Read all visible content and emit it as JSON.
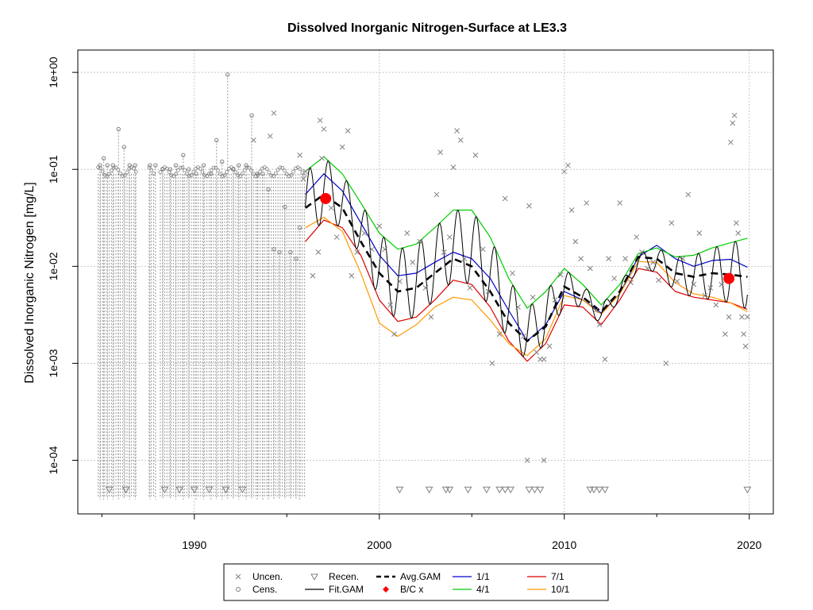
{
  "chart_data": {
    "type": "line",
    "title": "Dissolved Inorganic Nitrogen-Surface at LE3.3",
    "ylabel": "Dissolved Inorganic Nitrogen [mg/L]",
    "xlabel": "",
    "x_ticks": [
      1990,
      2000,
      2010,
      2020
    ],
    "x_tick_labels": [
      "1990",
      "2000",
      "2010",
      "2020"
    ],
    "y_scale": "log",
    "y_ticks": [
      0.0001,
      0.001,
      0.01,
      0.1,
      1
    ],
    "y_tick_labels": [
      "1e-04",
      "1e-03",
      "1e-02",
      "1e-01",
      "1e+00"
    ],
    "xlim": [
      1983.7,
      2021.3
    ],
    "ylim": [
      2.8e-05,
      1.7
    ],
    "grid": true,
    "legend_position": "bottom",
    "legend": [
      {
        "label": "Uncen.",
        "symbol": "x",
        "color": "#808080"
      },
      {
        "label": "Cens.",
        "symbol": "circle",
        "color": "#808080"
      },
      {
        "label": "Recen.",
        "symbol": "triangle-down",
        "color": "#808080"
      },
      {
        "label": "Fit.GAM",
        "symbol": "line",
        "color": "#000000"
      },
      {
        "label": "Avg.GAM",
        "symbol": "dashed-line",
        "color": "#000000"
      },
      {
        "label": "B/C x",
        "symbol": "diamond",
        "color": "#ff0000"
      },
      {
        "label": "1/1",
        "symbol": "line",
        "color": "#0000cc"
      },
      {
        "label": "4/1",
        "symbol": "line",
        "color": "#00cc00"
      },
      {
        "label": "7/1",
        "symbol": "line",
        "color": "#dd0000"
      },
      {
        "label": "10/1",
        "symbol": "line",
        "color": "#ff9900"
      }
    ],
    "colors": {
      "points": "#808080",
      "fit_gam": "#000000",
      "avg_gam": "#000000",
      "bc": "#ff0000",
      "s1": "#0000cc",
      "s4": "#00cc00",
      "s7": "#dd0000",
      "s10": "#ff9900"
    },
    "seasonal_curves": {
      "x": [
        1996.0,
        1997.0,
        1998.0,
        1999.0,
        2000.0,
        2001.0,
        2002.0,
        2003.0,
        2004.0,
        2005.0,
        2006.0,
        2007.0,
        2008.0,
        2009.0,
        2010.0,
        2011.0,
        2012.0,
        2013.0,
        2014.0,
        2015.0,
        2016.0,
        2017.0,
        2018.0,
        2019.0,
        2019.9
      ],
      "series": [
        {
          "key": "s1",
          "values": [
            0.055,
            0.09,
            0.06,
            0.028,
            0.013,
            0.008,
            0.0085,
            0.011,
            0.014,
            0.012,
            0.0075,
            0.0035,
            0.0017,
            0.0025,
            0.0055,
            0.0045,
            0.0033,
            0.0052,
            0.0125,
            0.0165,
            0.012,
            0.01,
            0.0115,
            0.0118,
            0.0098
          ]
        },
        {
          "key": "s4",
          "values": [
            0.095,
            0.135,
            0.09,
            0.045,
            0.022,
            0.015,
            0.017,
            0.025,
            0.038,
            0.038,
            0.02,
            0.0075,
            0.0037,
            0.0055,
            0.0095,
            0.0065,
            0.004,
            0.0065,
            0.0135,
            0.0155,
            0.0125,
            0.013,
            0.0155,
            0.0175,
            0.0195
          ]
        },
        {
          "key": "s7",
          "values": [
            0.018,
            0.03,
            0.025,
            0.013,
            0.0045,
            0.0027,
            0.003,
            0.0045,
            0.0072,
            0.0065,
            0.0038,
            0.0017,
            0.00105,
            0.0016,
            0.004,
            0.0038,
            0.0025,
            0.0045,
            0.0095,
            0.0087,
            0.0055,
            0.0048,
            0.0045,
            0.0042,
            0.0036
          ]
        },
        {
          "key": "s10",
          "values": [
            0.025,
            0.032,
            0.023,
            0.0085,
            0.0026,
            0.0019,
            0.0025,
            0.0038,
            0.0048,
            0.0045,
            0.0028,
            0.0016,
            0.0012,
            0.0018,
            0.005,
            0.0045,
            0.0032,
            0.0052,
            0.0112,
            0.011,
            0.0068,
            0.0052,
            0.0048,
            0.0042,
            0.0034
          ]
        }
      ]
    },
    "avg_gam": {
      "x": [
        1996.0,
        1997.0,
        1998.0,
        1999.0,
        2000.0,
        2001.0,
        2002.0,
        2003.0,
        2004.0,
        2005.0,
        2006.0,
        2007.0,
        2008.0,
        2009.0,
        2010.0,
        2011.0,
        2012.0,
        2013.0,
        2014.0,
        2015.0,
        2016.0,
        2017.0,
        2018.0,
        2019.0,
        2019.9
      ],
      "values": [
        0.04,
        0.055,
        0.04,
        0.018,
        0.0085,
        0.0055,
        0.006,
        0.0085,
        0.012,
        0.01,
        0.0055,
        0.0026,
        0.0017,
        0.0024,
        0.0062,
        0.0048,
        0.0034,
        0.0055,
        0.0125,
        0.012,
        0.0085,
        0.0078,
        0.0085,
        0.0082,
        0.0078
      ]
    },
    "bc_points": [
      {
        "x": 1997.1,
        "y": 0.05
      },
      {
        "x": 2018.9,
        "y": 0.0075
      }
    ],
    "uncensored_points": [
      {
        "x": 1995.9,
        "y": 0.08
      },
      {
        "x": 1996.0,
        "y": 0.095
      },
      {
        "x": 1996.4,
        "y": 0.008
      },
      {
        "x": 1996.7,
        "y": 0.014
      },
      {
        "x": 1996.8,
        "y": 0.32
      },
      {
        "x": 1996.9,
        "y": 0.13
      },
      {
        "x": 1997.0,
        "y": 0.26
      },
      {
        "x": 1997.4,
        "y": 0.04
      },
      {
        "x": 1997.7,
        "y": 0.02
      },
      {
        "x": 1998.0,
        "y": 0.17
      },
      {
        "x": 1998.3,
        "y": 0.25
      },
      {
        "x": 1998.5,
        "y": 0.008
      },
      {
        "x": 1998.8,
        "y": 0.014
      },
      {
        "x": 1999.2,
        "y": 0.022
      },
      {
        "x": 1999.6,
        "y": 0.015
      },
      {
        "x": 2000.0,
        "y": 0.026
      },
      {
        "x": 2000.3,
        "y": 0.015
      },
      {
        "x": 2000.6,
        "y": 0.004
      },
      {
        "x": 2000.8,
        "y": 0.002
      },
      {
        "x": 2001.1,
        "y": 0.007
      },
      {
        "x": 2001.5,
        "y": 0.022
      },
      {
        "x": 2001.8,
        "y": 0.011
      },
      {
        "x": 2002.2,
        "y": 0.018
      },
      {
        "x": 2002.5,
        "y": 0.006
      },
      {
        "x": 2002.8,
        "y": 0.003
      },
      {
        "x": 2003.1,
        "y": 0.055
      },
      {
        "x": 2003.3,
        "y": 0.15
      },
      {
        "x": 2003.5,
        "y": 0.014
      },
      {
        "x": 2003.8,
        "y": 0.02
      },
      {
        "x": 2004.0,
        "y": 0.105
      },
      {
        "x": 2004.2,
        "y": 0.25
      },
      {
        "x": 2004.4,
        "y": 0.2
      },
      {
        "x": 2004.6,
        "y": 0.012
      },
      {
        "x": 2004.9,
        "y": 0.006
      },
      {
        "x": 2005.2,
        "y": 0.14
      },
      {
        "x": 2005.6,
        "y": 0.015
      },
      {
        "x": 2005.9,
        "y": 0.0055
      },
      {
        "x": 2006.1,
        "y": 0.001
      },
      {
        "x": 2006.5,
        "y": 0.002
      },
      {
        "x": 2006.8,
        "y": 0.05
      },
      {
        "x": 2007.2,
        "y": 0.0085
      },
      {
        "x": 2007.5,
        "y": 0.0038
      },
      {
        "x": 2007.8,
        "y": 0.0019
      },
      {
        "x": 2008.1,
        "y": 0.042
      },
      {
        "x": 2008.3,
        "y": 0.0048
      },
      {
        "x": 2008.5,
        "y": 0.0013
      },
      {
        "x": 2008.7,
        "y": 0.0011
      },
      {
        "x": 2008.9,
        "y": 0.0011
      },
      {
        "x": 2009.2,
        "y": 0.0015
      },
      {
        "x": 2009.5,
        "y": 0.0045
      },
      {
        "x": 2009.8,
        "y": 0.0082
      },
      {
        "x": 2010.0,
        "y": 0.095
      },
      {
        "x": 2010.2,
        "y": 0.11
      },
      {
        "x": 2010.4,
        "y": 0.038
      },
      {
        "x": 2010.6,
        "y": 0.018
      },
      {
        "x": 2010.9,
        "y": 0.012
      },
      {
        "x": 2011.2,
        "y": 0.045
      },
      {
        "x": 2011.4,
        "y": 0.0095
      },
      {
        "x": 2011.7,
        "y": 0.0035
      },
      {
        "x": 2011.9,
        "y": 0.0025
      },
      {
        "x": 2012.2,
        "y": 0.0011
      },
      {
        "x": 2012.4,
        "y": 0.012
      },
      {
        "x": 2012.7,
        "y": 0.0075
      },
      {
        "x": 2013.0,
        "y": 0.045
      },
      {
        "x": 2013.3,
        "y": 0.012
      },
      {
        "x": 2013.6,
        "y": 0.0068
      },
      {
        "x": 2013.9,
        "y": 0.02
      },
      {
        "x": 2014.2,
        "y": 0.014
      },
      {
        "x": 2014.5,
        "y": 0.0095
      },
      {
        "x": 2014.8,
        "y": 0.011
      },
      {
        "x": 2015.1,
        "y": 0.0072
      },
      {
        "x": 2015.5,
        "y": 0.001
      },
      {
        "x": 2015.8,
        "y": 0.028
      },
      {
        "x": 2016.1,
        "y": 0.007
      },
      {
        "x": 2016.4,
        "y": 0.012
      },
      {
        "x": 2016.7,
        "y": 0.055
      },
      {
        "x": 2017.0,
        "y": 0.0065
      },
      {
        "x": 2017.3,
        "y": 0.022
      },
      {
        "x": 2017.6,
        "y": 0.005
      },
      {
        "x": 2017.9,
        "y": 0.006
      },
      {
        "x": 2018.2,
        "y": 0.004
      },
      {
        "x": 2018.5,
        "y": 0.0065
      },
      {
        "x": 2018.7,
        "y": 0.002
      },
      {
        "x": 2018.9,
        "y": 0.003
      },
      {
        "x": 2019.0,
        "y": 0.19
      },
      {
        "x": 2019.1,
        "y": 0.3
      },
      {
        "x": 2019.2,
        "y": 0.36
      },
      {
        "x": 2019.3,
        "y": 0.028
      },
      {
        "x": 2019.4,
        "y": 0.022
      },
      {
        "x": 2019.6,
        "y": 0.003
      },
      {
        "x": 2019.7,
        "y": 0.002
      },
      {
        "x": 2019.8,
        "y": 0.0015
      },
      {
        "x": 2019.9,
        "y": 0.003
      }
    ],
    "censored_points": [
      {
        "x": 1984.9,
        "y": 0.11
      },
      {
        "x": 1985.1,
        "y": 0.13
      },
      {
        "x": 1985.3,
        "y": 0.11
      },
      {
        "x": 1985.6,
        "y": 0.11
      },
      {
        "x": 1985.9,
        "y": 0.26
      },
      {
        "x": 1986.2,
        "y": 0.17
      },
      {
        "x": 1986.5,
        "y": 0.11
      },
      {
        "x": 1986.8,
        "y": 0.11
      },
      {
        "x": 1987.6,
        "y": 0.11
      },
      {
        "x": 1987.9,
        "y": 0.11
      },
      {
        "x": 1988.3,
        "y": 0.1
      },
      {
        "x": 1988.7,
        "y": 0.1
      },
      {
        "x": 1989.0,
        "y": 0.11
      },
      {
        "x": 1989.4,
        "y": 0.14
      },
      {
        "x": 1989.7,
        "y": 0.1
      },
      {
        "x": 1990.1,
        "y": 0.09
      },
      {
        "x": 1990.5,
        "y": 0.11
      },
      {
        "x": 1990.9,
        "y": 0.09
      },
      {
        "x": 1991.2,
        "y": 0.2
      },
      {
        "x": 1991.5,
        "y": 0.12
      },
      {
        "x": 1991.8,
        "y": 0.95
      },
      {
        "x": 1992.1,
        "y": 0.1
      },
      {
        "x": 1992.4,
        "y": 0.11
      },
      {
        "x": 1992.8,
        "y": 0.11
      },
      {
        "x": 1993.1,
        "y": 0.36
      },
      {
        "x": 1993.4,
        "y": 0.09
      },
      {
        "x": 1993.7,
        "y": 0.09
      },
      {
        "x": 1994.0,
        "y": 0.062
      },
      {
        "x": 1994.3,
        "y": 0.015
      },
      {
        "x": 1994.6,
        "y": 0.014
      },
      {
        "x": 1994.9,
        "y": 0.041
      },
      {
        "x": 1995.2,
        "y": 0.014
      },
      {
        "x": 1995.5,
        "y": 0.012
      },
      {
        "x": 1995.7,
        "y": 0.025
      }
    ],
    "recensored_points": [
      {
        "x": 1985.4,
        "y": 5e-05
      },
      {
        "x": 1986.3,
        "y": 5e-05
      },
      {
        "x": 1988.4,
        "y": 5e-05
      },
      {
        "x": 1989.2,
        "y": 5e-05
      },
      {
        "x": 1990.0,
        "y": 5e-05
      },
      {
        "x": 1990.8,
        "y": 5e-05
      },
      {
        "x": 1991.7,
        "y": 5e-05
      },
      {
        "x": 1992.6,
        "y": 5e-05
      },
      {
        "x": 2001.1,
        "y": 5e-05
      },
      {
        "x": 2002.7,
        "y": 5e-05
      },
      {
        "x": 2003.6,
        "y": 5e-05
      },
      {
        "x": 2003.8,
        "y": 5e-05
      },
      {
        "x": 2004.8,
        "y": 5e-05
      },
      {
        "x": 2005.8,
        "y": 5e-05
      },
      {
        "x": 2006.5,
        "y": 5e-05
      },
      {
        "x": 2006.8,
        "y": 5e-05
      },
      {
        "x": 2007.1,
        "y": 5e-05
      },
      {
        "x": 2008.1,
        "y": 5e-05
      },
      {
        "x": 2008.4,
        "y": 5e-05
      },
      {
        "x": 2008.7,
        "y": 5e-05
      },
      {
        "x": 2011.4,
        "y": 5e-05
      },
      {
        "x": 2011.6,
        "y": 5e-05
      },
      {
        "x": 2011.9,
        "y": 5e-05
      },
      {
        "x": 2012.2,
        "y": 5e-05
      },
      {
        "x": 2019.9,
        "y": 5e-05
      }
    ],
    "outlier_points": [
      {
        "x": 1994.3,
        "y": 0.38
      },
      {
        "x": 1994.1,
        "y": 0.22
      },
      {
        "x": 1993.2,
        "y": 0.2
      },
      {
        "x": 1995.7,
        "y": 0.14
      },
      {
        "x": 2008.0,
        "y": 0.0001
      },
      {
        "x": 2008.9,
        "y": 0.0001
      }
    ]
  }
}
